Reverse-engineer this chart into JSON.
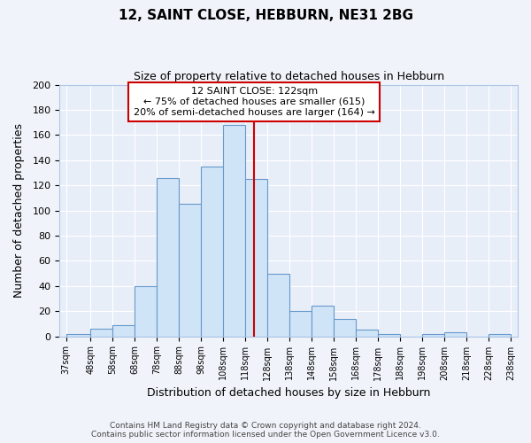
{
  "title": "12, SAINT CLOSE, HEBBURN, NE31 2BG",
  "subtitle": "Size of property relative to detached houses in Hebburn",
  "xlabel": "Distribution of detached houses by size in Hebburn",
  "ylabel": "Number of detached properties",
  "bar_color": "#d0e4f7",
  "bar_edge_color": "#6699cc",
  "bins": [
    37,
    48,
    58,
    68,
    78,
    88,
    98,
    108,
    118,
    128,
    138,
    148,
    158,
    168,
    178,
    188,
    198,
    208,
    218,
    228,
    238
  ],
  "counts": [
    2,
    6,
    9,
    40,
    126,
    105,
    135,
    168,
    125,
    50,
    20,
    24,
    14,
    5,
    2,
    0,
    2,
    3,
    0,
    2
  ],
  "tick_labels": [
    "37sqm",
    "48sqm",
    "58sqm",
    "68sqm",
    "78sqm",
    "88sqm",
    "98sqm",
    "108sqm",
    "118sqm",
    "128sqm",
    "138sqm",
    "148sqm",
    "158sqm",
    "168sqm",
    "178sqm",
    "188sqm",
    "198sqm",
    "208sqm",
    "218sqm",
    "228sqm",
    "238sqm"
  ],
  "property_value": 122,
  "vline_color": "#cc0000",
  "annotation_title": "12 SAINT CLOSE: 122sqm",
  "annotation_line1": "← 75% of detached houses are smaller (615)",
  "annotation_line2": "20% of semi-detached houses are larger (164) →",
  "annotation_box_color": "#ffffff",
  "annotation_box_edge": "#cc0000",
  "ylim": [
    0,
    200
  ],
  "yticks": [
    0,
    20,
    40,
    60,
    80,
    100,
    120,
    140,
    160,
    180,
    200
  ],
  "footnote1": "Contains HM Land Registry data © Crown copyright and database right 2024.",
  "footnote2": "Contains public sector information licensed under the Open Government Licence v3.0.",
  "bg_color": "#f0f4fa",
  "plot_bg_color": "#e8eef8"
}
